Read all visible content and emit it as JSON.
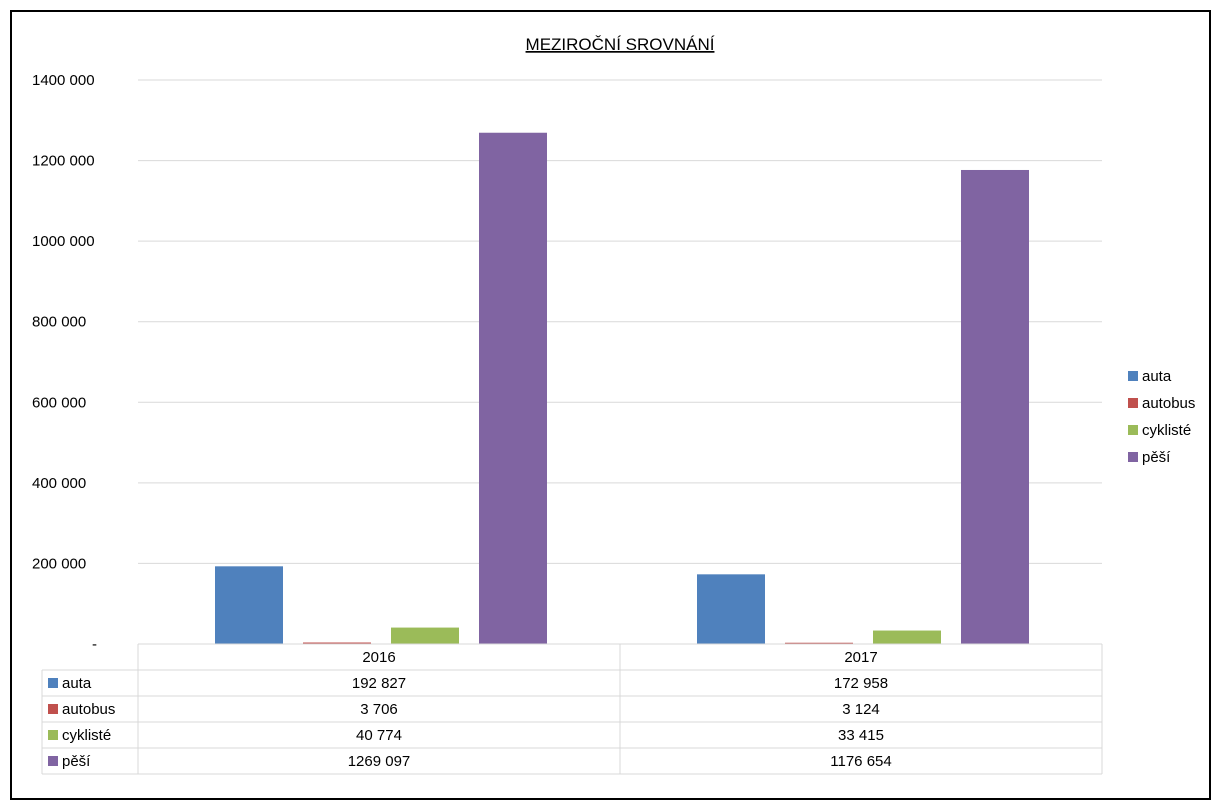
{
  "chart_data": {
    "type": "bar",
    "title": "MEZIROČNÍ SROVNÁNÍ",
    "categories": [
      "2016",
      "2017"
    ],
    "series": [
      {
        "name": "auta",
        "values": [
          192827,
          172958
        ],
        "display": [
          "192 827",
          "172 958"
        ],
        "color": "#4F81BD"
      },
      {
        "name": "autobus",
        "values": [
          3706,
          3124
        ],
        "display": [
          "3 706",
          "3 124"
        ],
        "color": "#C0504D"
      },
      {
        "name": "cyklisté",
        "values": [
          40774,
          33415
        ],
        "display": [
          "40 774",
          "33 415"
        ],
        "color": "#9BBB59"
      },
      {
        "name": "pěší",
        "values": [
          1269097,
          1176654
        ],
        "display": [
          "1269 097",
          "1176 654"
        ],
        "color": "#8064A2"
      }
    ],
    "ylim": [
      0,
      1400000
    ],
    "yticks": [
      {
        "value": 0,
        "label": "-"
      },
      {
        "value": 200000,
        "label": "200 000"
      },
      {
        "value": 400000,
        "label": "400 000"
      },
      {
        "value": 600000,
        "label": "600 000"
      },
      {
        "value": 800000,
        "label": "800 000"
      },
      {
        "value": 1000000,
        "label": "1000 000"
      },
      {
        "value": 1200000,
        "label": "1200 000"
      },
      {
        "value": 1400000,
        "label": "1400 000"
      }
    ],
    "grid": true,
    "legend": "right",
    "data_table": true,
    "xlabel": "",
    "ylabel": ""
  }
}
